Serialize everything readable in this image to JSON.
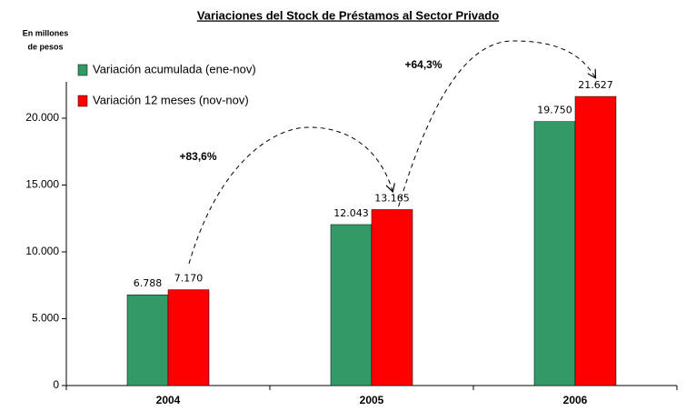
{
  "chart_data": {
    "type": "bar",
    "title": "Variaciones del Stock de Préstamos al Sector Privado",
    "y_label": [
      "En millones",
      "de pesos"
    ],
    "categories": [
      "2004",
      "2005",
      "2006"
    ],
    "series": [
      {
        "name": "Variación acumulada (ene-nov)",
        "color": "#339966",
        "values": [
          6788,
          12043,
          19750
        ],
        "value_labels": [
          "6.788",
          "12.043",
          "19.750"
        ]
      },
      {
        "name": "Variación 12 meses (nov-nov)",
        "color": "#ff0000",
        "values": [
          7170,
          13165,
          21627
        ],
        "value_labels": [
          "7.170",
          "13.165",
          "21.627"
        ]
      }
    ],
    "ylim": [
      0,
      20000
    ],
    "yticks": [
      0,
      {
        "value": 5000,
        "label": "5.000"
      },
      {
        "value": 10000,
        "label": "10.000"
      },
      {
        "value": 15000,
        "label": "15.000"
      },
      {
        "value": 20000,
        "label": "20.000"
      }
    ],
    "annotations": [
      "+83,6%",
      "+64,3%"
    ],
    "legend": "upper left"
  }
}
